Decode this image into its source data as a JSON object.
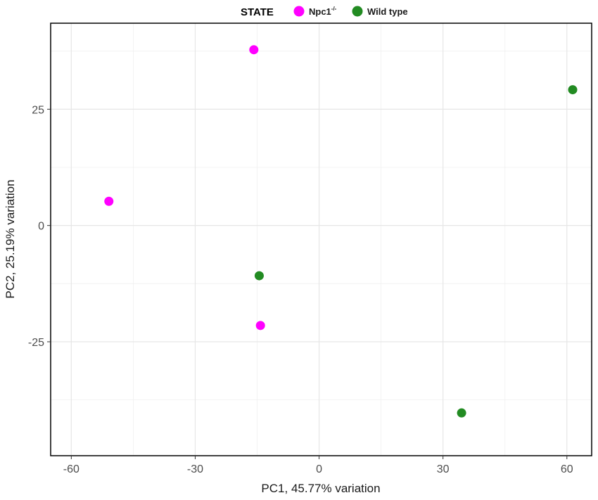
{
  "chart_data": {
    "type": "scatter",
    "xlabel": "PC1, 45.77% variation",
    "ylabel": "PC2, 25.19% variation",
    "xlim": [
      -65,
      66
    ],
    "ylim": [
      -49.5,
      43.5
    ],
    "xticks": [
      -60,
      -30,
      0,
      30,
      60
    ],
    "xtick_labels": [
      "-60",
      "-30",
      "0",
      "30",
      "60"
    ],
    "yticks": [
      -25,
      0,
      25
    ],
    "ytick_labels": [
      "-25",
      "0",
      "25"
    ],
    "grid": true,
    "legend": {
      "title": "STATE",
      "position": "top",
      "entries": [
        {
          "label": "Npc1",
          "superscript": "-/-",
          "color": "#ff00ff"
        },
        {
          "label": "Wild type",
          "superscript": "",
          "color": "#228b22"
        }
      ]
    },
    "series": [
      {
        "name": "Npc1-/-",
        "color": "#ff00ff",
        "points": [
          {
            "x": -15.8,
            "y": 37.8
          },
          {
            "x": -50.9,
            "y": 5.2
          },
          {
            "x": -14.2,
            "y": -21.5
          }
        ]
      },
      {
        "name": "Wild type",
        "color": "#228b22",
        "points": [
          {
            "x": 61.4,
            "y": 29.2
          },
          {
            "x": -14.5,
            "y": -10.8
          },
          {
            "x": 34.5,
            "y": -40.3
          }
        ]
      }
    ]
  }
}
